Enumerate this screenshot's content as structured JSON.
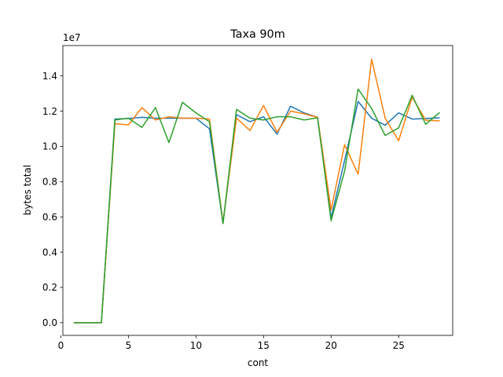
{
  "chart_data": {
    "type": "line",
    "title": "Taxa 90m",
    "xlabel": "cont",
    "ylabel": "bytes total",
    "y_offset_label": "1e7",
    "xlim": [
      0.15,
      29.0
    ],
    "ylim": [
      -0.072,
      1.572
    ],
    "xticks": [
      0,
      5,
      10,
      15,
      20,
      25
    ],
    "yticks": [
      0.0,
      0.2,
      0.4,
      0.6,
      0.8,
      1.0,
      1.2,
      1.4
    ],
    "xtick_labels": [
      "0",
      "5",
      "10",
      "15",
      "20",
      "25"
    ],
    "ytick_labels": [
      "0.0",
      "0.2",
      "0.4",
      "0.6",
      "0.8",
      "1.0",
      "1.2",
      "1.4"
    ],
    "grid": false,
    "legend": false,
    "x": [
      1,
      2,
      3,
      4,
      5,
      6,
      7,
      8,
      9,
      10,
      11,
      12,
      13,
      14,
      15,
      16,
      17,
      18,
      19,
      20,
      21,
      22,
      23,
      24,
      25,
      26,
      27,
      28
    ],
    "series": [
      {
        "color": "#1f77b4",
        "values": [
          0,
          0,
          0,
          1.155,
          1.158,
          1.165,
          1.16,
          1.16,
          1.16,
          1.16,
          1.1,
          0.565,
          1.18,
          1.14,
          1.168,
          1.07,
          1.228,
          1.19,
          1.165,
          0.595,
          0.92,
          1.255,
          1.16,
          1.12,
          1.19,
          1.155,
          1.158,
          1.162
        ]
      },
      {
        "color": "#ff7f0e",
        "values": [
          0,
          0,
          0,
          1.128,
          1.122,
          1.22,
          1.15,
          1.168,
          1.16,
          1.16,
          1.155,
          0.568,
          1.16,
          1.09,
          1.232,
          1.08,
          1.2,
          1.185,
          1.165,
          0.64,
          1.01,
          0.842,
          1.495,
          1.16,
          1.032,
          1.28,
          1.148,
          1.145
        ]
      },
      {
        "color": "#2ca02c",
        "values": [
          0,
          0,
          0,
          1.15,
          1.16,
          1.108,
          1.22,
          1.022,
          1.25,
          1.19,
          1.14,
          0.562,
          1.21,
          1.16,
          1.15,
          1.168,
          1.168,
          1.15,
          1.162,
          0.578,
          0.86,
          1.325,
          1.215,
          1.062,
          1.105,
          1.29,
          1.125,
          1.19
        ]
      }
    ]
  }
}
